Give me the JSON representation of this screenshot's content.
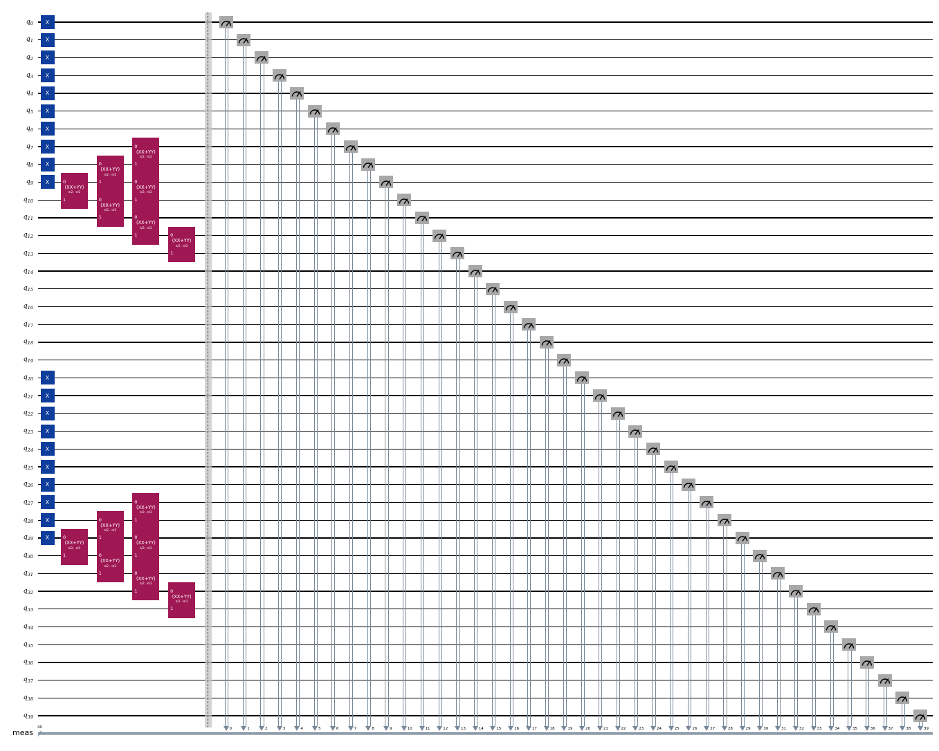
{
  "figure": {
    "type": "quantum-circuit-diagram",
    "background": "#ffffff",
    "wire_color": "#000000"
  },
  "qubits": {
    "labels": [
      "q0",
      "q1",
      "q2",
      "q3",
      "q4",
      "q5",
      "q6",
      "q7",
      "q8",
      "q9",
      "q10",
      "q11",
      "q12",
      "q13",
      "q14",
      "q15",
      "q16",
      "q17",
      "q18",
      "q19",
      "q20",
      "q21",
      "q22",
      "q23",
      "q24",
      "q25",
      "q26",
      "q27",
      "q28",
      "q29",
      "q30",
      "q31",
      "q32",
      "q33",
      "q34",
      "q35",
      "q36",
      "q37",
      "q38",
      "q39"
    ]
  },
  "classical": {
    "label": "meas",
    "size": "40",
    "wire_color": "#778899",
    "bit_labels": [
      "0",
      "1",
      "2",
      "3",
      "4",
      "5",
      "6",
      "7",
      "8",
      "9",
      "10",
      "11",
      "12",
      "13",
      "14",
      "15",
      "16",
      "17",
      "18",
      "19",
      "20",
      "21",
      "22",
      "23",
      "24",
      "25",
      "26",
      "27",
      "28",
      "29",
      "30",
      "31",
      "32",
      "33",
      "34",
      "35",
      "36",
      "37",
      "38",
      "39"
    ]
  },
  "gates": {
    "x": {
      "label": "X",
      "color": "#0f3d9c",
      "text_color": "#ffffff",
      "qubits": [
        0,
        1,
        2,
        3,
        4,
        5,
        6,
        7,
        8,
        9,
        20,
        21,
        22,
        23,
        24,
        25,
        26,
        27,
        28,
        29
      ]
    },
    "xx_plus_yy": {
      "label": "(XX+YY)",
      "params": "π/2, -π/2",
      "port_top": "0",
      "port_bottom": "1",
      "color": "#9f1853",
      "text_color": "#ffffff",
      "placements": [
        {
          "column": 0,
          "qubit": 9
        },
        {
          "column": 1,
          "qubit": 8
        },
        {
          "column": 1,
          "qubit": 10
        },
        {
          "column": 2,
          "qubit": 7
        },
        {
          "column": 2,
          "qubit": 9
        },
        {
          "column": 2,
          "qubit": 11
        },
        {
          "column": 3,
          "qubit": 12
        },
        {
          "column": 0,
          "qubit": 29
        },
        {
          "column": 1,
          "qubit": 28
        },
        {
          "column": 1,
          "qubit": 30
        },
        {
          "column": 2,
          "qubit": 27
        },
        {
          "column": 2,
          "qubit": 29
        },
        {
          "column": 2,
          "qubit": 31
        },
        {
          "column": 3,
          "qubit": 32
        }
      ]
    },
    "measure": {
      "box_color": "#a8a8a8",
      "icon_color": "#000000",
      "line_color": "#778899",
      "qubits": [
        0,
        1,
        2,
        3,
        4,
        5,
        6,
        7,
        8,
        9,
        10,
        11,
        12,
        13,
        14,
        15,
        16,
        17,
        18,
        19,
        20,
        21,
        22,
        23,
        24,
        25,
        26,
        27,
        28,
        29,
        30,
        31,
        32,
        33,
        34,
        35,
        36,
        37,
        38,
        39
      ],
      "bits": [
        0,
        1,
        2,
        3,
        4,
        5,
        6,
        7,
        8,
        9,
        10,
        11,
        12,
        13,
        14,
        15,
        16,
        17,
        18,
        19,
        20,
        21,
        22,
        23,
        24,
        25,
        26,
        27,
        28,
        29,
        30,
        31,
        32,
        33,
        34,
        35,
        36,
        37,
        38,
        39
      ]
    },
    "barrier": {
      "band_color": "#c6c6c6",
      "dash_color": "#3a3a3a"
    }
  }
}
